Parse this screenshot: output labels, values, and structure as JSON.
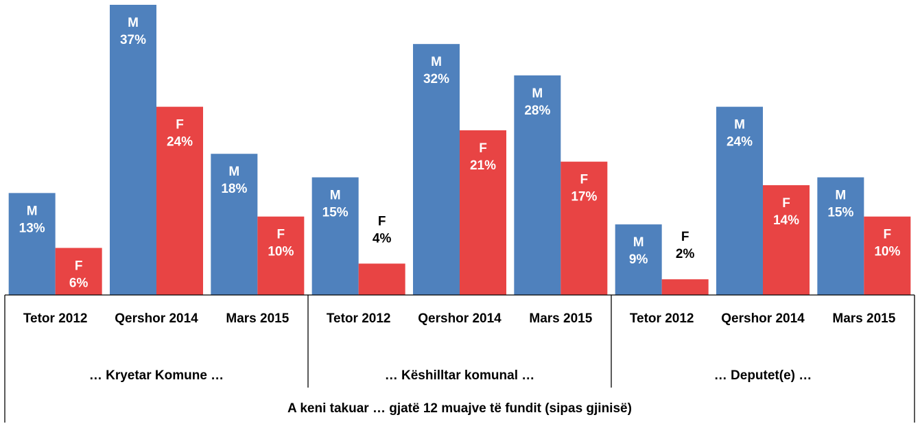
{
  "chart_data": {
    "type": "bar",
    "categories": [
      "Tetor 2012",
      "Qershor 2014",
      "Mars 2015",
      "Tetor 2012",
      "Qershor 2014",
      "Mars 2015",
      "Tetor 2012",
      "Qershor 2014",
      "Mars 2015"
    ],
    "category_groups": [
      "… Kryetar Komune …",
      "… Këshilltar komunal …",
      "… Deputet(e) …"
    ],
    "x_label": "A keni takuar … gjatë 12 muajve të fundit (sipas gjinisë)",
    "series": [
      {
        "name": "M",
        "color": "#4f81bd",
        "values": [
          13,
          37,
          18,
          15,
          32,
          28,
          9,
          24,
          15
        ],
        "value_labels": [
          "13%",
          "37%",
          "18%",
          "15%",
          "32%",
          "28%",
          "9%",
          "24%",
          "15%"
        ]
      },
      {
        "name": "F",
        "color": "#e84444",
        "values": [
          6,
          24,
          10,
          4,
          21,
          17,
          2,
          14,
          10
        ],
        "value_labels": [
          "6%",
          "24%",
          "10%",
          "4%",
          "21%",
          "17%",
          "2%",
          "14%",
          "10%"
        ]
      }
    ]
  }
}
